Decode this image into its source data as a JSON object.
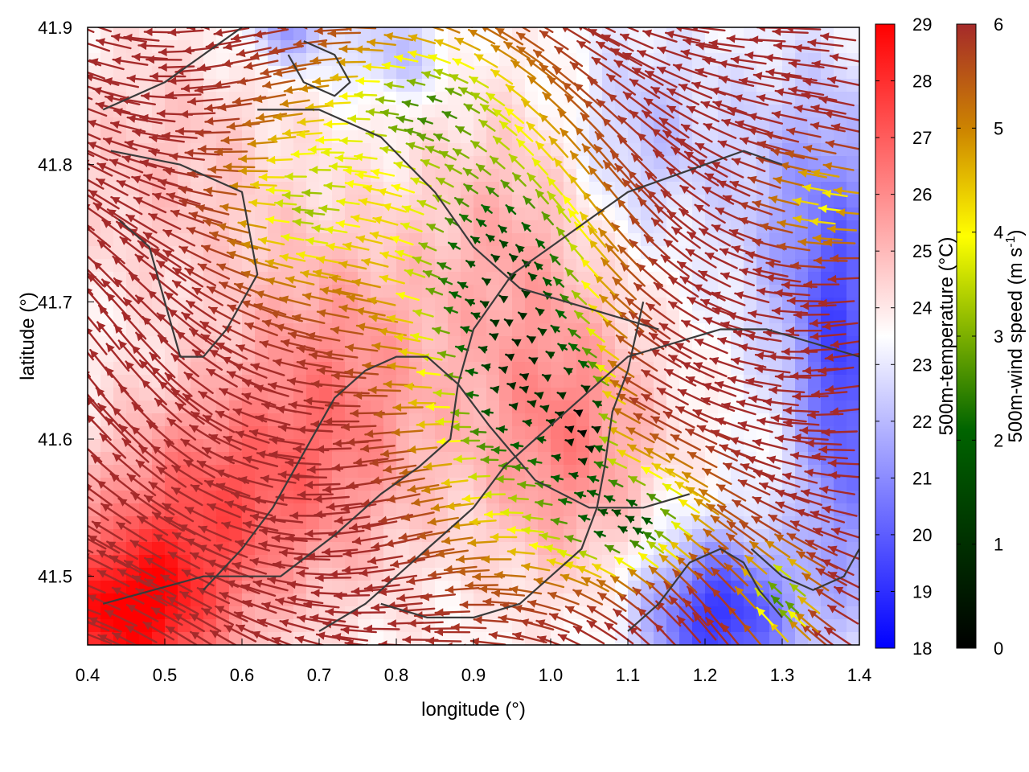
{
  "chart_data": {
    "type": "heatmap",
    "title": "",
    "xlabel": "longitude (°)",
    "ylabel": "latitude (°)",
    "xlim": [
      0.4,
      1.4
    ],
    "ylim": [
      41.45,
      41.9
    ],
    "x_ticks": [
      "0.4",
      "0.5",
      "0.6",
      "0.7",
      "0.8",
      "0.9",
      "1.0",
      "1.1",
      "1.2",
      "1.3",
      "1.4"
    ],
    "y_ticks": [
      "41.5",
      "41.6",
      "41.7",
      "41.8",
      "41.9"
    ],
    "grid": false,
    "legend": "right",
    "temperature_colorbar": {
      "label": "500m-temperature (°C)",
      "range": [
        18,
        29
      ],
      "ticks": [
        "18",
        "19",
        "20",
        "21",
        "22",
        "23",
        "24",
        "25",
        "26",
        "27",
        "28",
        "29"
      ],
      "colors": [
        "#0000ff",
        "#ffffff",
        "#ff0000"
      ],
      "mid_value": 23.5
    },
    "wind_colorbar": {
      "label": "500m-wind speed (m s",
      "label_exponent": "-1",
      "label_close": ")",
      "range": [
        0,
        6
      ],
      "ticks": [
        "0",
        "1",
        "2",
        "3",
        "4",
        "5",
        "6"
      ],
      "colors": [
        "#000000",
        "#006400",
        "#ffff00",
        "#cd8500",
        "#a52a2a"
      ]
    },
    "temperature_field": {
      "background": 23.6,
      "features": [
        {
          "lon": 0.45,
          "lat": 41.47,
          "amp": 5.0,
          "rlon": 0.12,
          "rlat": 0.06
        },
        {
          "lon": 0.55,
          "lat": 41.55,
          "amp": 3.0,
          "rlon": 0.15,
          "rlat": 0.08
        },
        {
          "lon": 0.72,
          "lat": 41.63,
          "amp": 2.5,
          "rlon": 0.14,
          "rlat": 0.12
        },
        {
          "lon": 1.02,
          "lat": 41.6,
          "amp": 2.5,
          "rlon": 0.12,
          "rlat": 0.1
        },
        {
          "lon": 0.95,
          "lat": 41.75,
          "amp": 1.5,
          "rlon": 0.12,
          "rlat": 0.1
        },
        {
          "lon": 0.5,
          "lat": 41.8,
          "amp": 1.2,
          "rlon": 0.15,
          "rlat": 0.1
        },
        {
          "lon": 1.22,
          "lat": 41.47,
          "amp": -4.5,
          "rlon": 0.1,
          "rlat": 0.06
        },
        {
          "lon": 1.38,
          "lat": 41.63,
          "amp": -3.5,
          "rlon": 0.06,
          "rlat": 0.15
        },
        {
          "lon": 1.33,
          "lat": 41.76,
          "amp": -2.0,
          "rlon": 0.1,
          "rlat": 0.12
        },
        {
          "lon": 0.66,
          "lat": 41.9,
          "amp": -2.2,
          "rlon": 0.06,
          "rlat": 0.03
        },
        {
          "lon": 0.8,
          "lat": 41.88,
          "amp": -1.5,
          "rlon": 0.06,
          "rlat": 0.03
        },
        {
          "lon": 1.12,
          "lat": 41.82,
          "amp": -1.5,
          "rlon": 0.1,
          "rlat": 0.08
        }
      ]
    },
    "wind_field": {
      "default_speed": 6,
      "min_speed": 0.2,
      "arrow_length_at_max": 0.045,
      "direction": "west-north-west",
      "calm_zones": [
        {
          "lon": 1.04,
          "lat": 41.61,
          "rlon": 0.045,
          "rlat": 0.05,
          "depth": 1.0
        },
        {
          "lon": 0.96,
          "lat": 41.65,
          "rlon": 0.09,
          "rlat": 0.1,
          "depth": 0.85
        },
        {
          "lon": 0.93,
          "lat": 41.73,
          "rlon": 0.12,
          "rlat": 0.08,
          "depth": 0.65
        },
        {
          "lon": 1.1,
          "lat": 41.54,
          "rlon": 0.1,
          "rlat": 0.04,
          "depth": 0.75
        },
        {
          "lon": 0.85,
          "lat": 41.84,
          "rlon": 0.12,
          "rlat": 0.05,
          "depth": 0.55
        },
        {
          "lon": 0.7,
          "lat": 41.77,
          "rlon": 0.08,
          "rlat": 0.06,
          "depth": 0.45
        },
        {
          "lon": 1.31,
          "lat": 41.48,
          "rlon": 0.04,
          "rlat": 0.03,
          "depth": 0.6
        },
        {
          "lon": 1.37,
          "lat": 41.77,
          "rlon": 0.05,
          "rlat": 0.03,
          "depth": 0.35
        }
      ]
    },
    "contours": [
      {
        "name": "contour-1",
        "points": [
          [
            0.42,
            41.48
          ],
          [
            0.55,
            41.5
          ],
          [
            0.65,
            41.5
          ],
          [
            0.72,
            41.53
          ],
          [
            0.78,
            41.56
          ],
          [
            0.83,
            41.58
          ],
          [
            0.87,
            41.6
          ],
          [
            0.88,
            41.64
          ],
          [
            0.9,
            41.68
          ],
          [
            0.95,
            41.72
          ],
          [
            1.0,
            41.74
          ],
          [
            1.05,
            41.76
          ],
          [
            1.1,
            41.78
          ],
          [
            1.15,
            41.79
          ],
          [
            1.2,
            41.8
          ],
          [
            1.25,
            41.81
          ],
          [
            1.3,
            41.8
          ]
        ]
      },
      {
        "name": "contour-2",
        "points": [
          [
            0.42,
            41.84
          ],
          [
            0.5,
            41.86
          ],
          [
            0.55,
            41.88
          ],
          [
            0.6,
            41.9
          ]
        ]
      },
      {
        "name": "contour-3",
        "points": [
          [
            0.43,
            41.81
          ],
          [
            0.52,
            41.8
          ],
          [
            0.6,
            41.78
          ],
          [
            0.62,
            41.72
          ],
          [
            0.58,
            41.68
          ],
          [
            0.55,
            41.66
          ],
          [
            0.52,
            41.66
          ],
          [
            0.5,
            41.7
          ],
          [
            0.48,
            41.74
          ],
          [
            0.44,
            41.76
          ]
        ]
      },
      {
        "name": "contour-4",
        "points": [
          [
            0.55,
            41.49
          ],
          [
            0.6,
            41.52
          ],
          [
            0.64,
            41.55
          ],
          [
            0.68,
            41.59
          ],
          [
            0.7,
            41.61
          ],
          [
            0.72,
            41.63
          ],
          [
            0.76,
            41.65
          ],
          [
            0.8,
            41.66
          ],
          [
            0.84,
            41.66
          ],
          [
            0.88,
            41.64
          ],
          [
            0.92,
            41.61
          ],
          [
            0.98,
            41.57
          ],
          [
            1.05,
            41.55
          ],
          [
            1.12,
            41.55
          ],
          [
            1.18,
            41.56
          ]
        ]
      },
      {
        "name": "contour-5",
        "points": [
          [
            0.62,
            41.84
          ],
          [
            0.7,
            41.84
          ],
          [
            0.78,
            41.82
          ],
          [
            0.85,
            41.78
          ],
          [
            0.9,
            41.74
          ],
          [
            0.96,
            41.71
          ],
          [
            1.02,
            41.7
          ],
          [
            1.08,
            41.69
          ],
          [
            1.14,
            41.68
          ]
        ]
      },
      {
        "name": "contour-6",
        "points": [
          [
            0.7,
            41.46
          ],
          [
            0.76,
            41.48
          ],
          [
            0.82,
            41.51
          ],
          [
            0.86,
            41.53
          ],
          [
            0.9,
            41.55
          ],
          [
            0.94,
            41.58
          ],
          [
            0.98,
            41.6
          ],
          [
            1.02,
            41.62
          ],
          [
            1.06,
            41.64
          ],
          [
            1.1,
            41.66
          ],
          [
            1.16,
            41.67
          ],
          [
            1.22,
            41.68
          ],
          [
            1.28,
            41.68
          ],
          [
            1.34,
            41.67
          ],
          [
            1.4,
            41.66
          ]
        ]
      },
      {
        "name": "contour-7",
        "points": [
          [
            0.68,
            41.89
          ],
          [
            0.72,
            41.88
          ],
          [
            0.74,
            41.86
          ],
          [
            0.72,
            41.85
          ],
          [
            0.68,
            41.86
          ],
          [
            0.66,
            41.88
          ]
        ]
      },
      {
        "name": "contour-8",
        "points": [
          [
            1.1,
            41.46
          ],
          [
            1.14,
            41.48
          ],
          [
            1.18,
            41.51
          ],
          [
            1.22,
            41.52
          ],
          [
            1.25,
            41.51
          ],
          [
            1.27,
            41.49
          ],
          [
            1.3,
            41.47
          ]
        ]
      },
      {
        "name": "contour-9",
        "points": [
          [
            0.78,
            41.48
          ],
          [
            0.84,
            41.47
          ],
          [
            0.9,
            41.47
          ],
          [
            0.96,
            41.48
          ],
          [
            1.0,
            41.5
          ],
          [
            1.04,
            41.52
          ],
          [
            1.06,
            41.55
          ],
          [
            1.07,
            41.58
          ],
          [
            1.08,
            41.62
          ],
          [
            1.1,
            41.65
          ],
          [
            1.12,
            41.7
          ]
        ]
      },
      {
        "name": "contour-10",
        "points": [
          [
            1.26,
            41.52
          ],
          [
            1.3,
            41.5
          ],
          [
            1.34,
            41.49
          ],
          [
            1.38,
            41.5
          ],
          [
            1.4,
            41.52
          ]
        ]
      }
    ]
  }
}
